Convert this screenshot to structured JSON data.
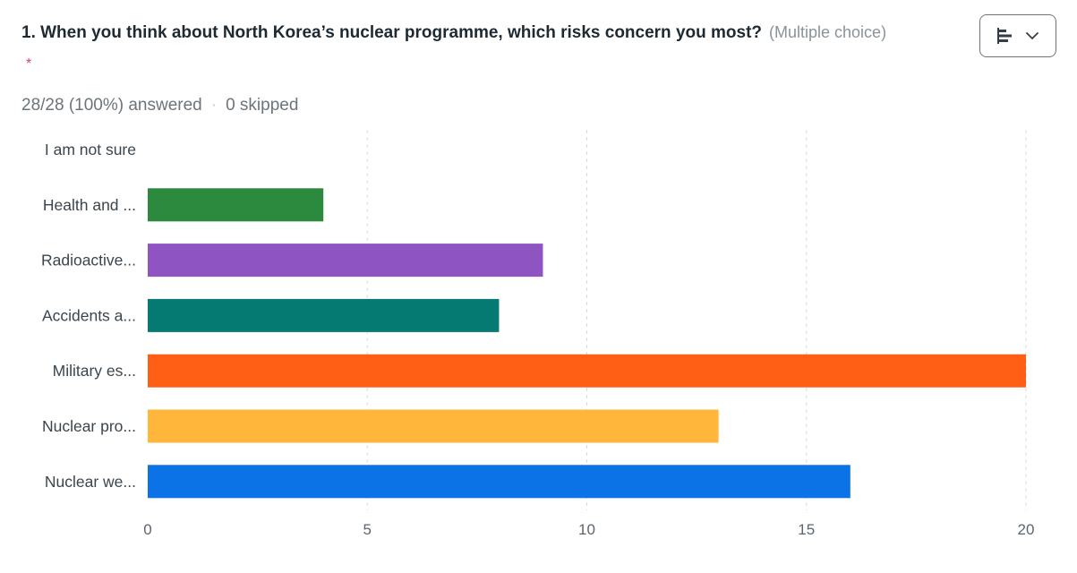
{
  "question": {
    "title": "1. When you think about North Korea’s nuclear programme, which risks concern you most?",
    "note": "(Multiple choice)",
    "required_marker": "*"
  },
  "view_switch": {
    "icon": "bar-chart-icon",
    "dropdown_icon": "chevron-down-icon"
  },
  "stats": {
    "answered": "28/28 (100%) answered",
    "separator": "·",
    "skipped": "0 skipped"
  },
  "chart_data": {
    "type": "bar",
    "orientation": "horizontal",
    "categories": [
      "I am not sure",
      "Health and ...",
      "Radioactive...",
      "Accidents a...",
      "Military es...",
      "Nuclear pro...",
      "Nuclear we..."
    ],
    "values": [
      0,
      4,
      9,
      8,
      20,
      13,
      16
    ],
    "colors": [
      "#2b8a3e",
      "#2b8a3e",
      "#8e54c1",
      "#047a73",
      "#ff5f14",
      "#ffb63b",
      "#0b73e6"
    ],
    "xlim": [
      0,
      20
    ],
    "xticks": [
      0,
      5,
      10,
      15,
      20
    ],
    "grid": true
  }
}
